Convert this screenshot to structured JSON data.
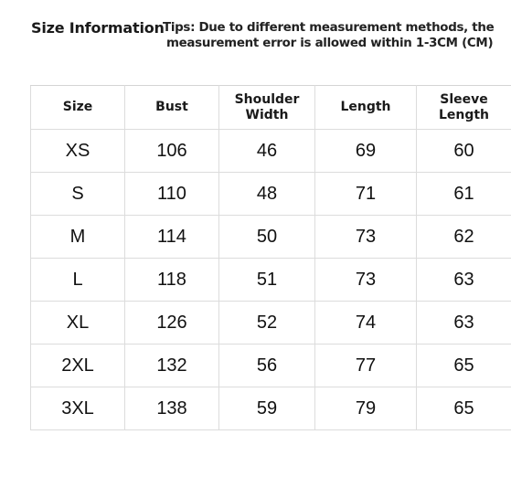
{
  "header": {
    "title": "Size Information",
    "tips_line1": "Tips: Due to different measurement methods, the",
    "tips_line2": "measurement error is allowed within 1-3CM (CM)"
  },
  "table": {
    "columns": [
      "Size",
      "Bust",
      "Shoulder\nWidth",
      "Length",
      "Sleeve\nLength"
    ],
    "rows": [
      [
        "XS",
        "106",
        "46",
        "69",
        "60"
      ],
      [
        "S",
        "110",
        "48",
        "71",
        "61"
      ],
      [
        "M",
        "114",
        "50",
        "73",
        "62"
      ],
      [
        "L",
        "118",
        "51",
        "73",
        "63"
      ],
      [
        "XL",
        "126",
        "52",
        "74",
        "63"
      ],
      [
        "2XL",
        "132",
        "56",
        "77",
        "65"
      ],
      [
        "3XL",
        "138",
        "59",
        "79",
        "65"
      ]
    ]
  },
  "chart_data": {
    "type": "table",
    "columns": [
      "Size",
      "Bust",
      "Shoulder Width",
      "Length",
      "Sleeve Length"
    ],
    "rows": [
      [
        "XS",
        106,
        46,
        69,
        60
      ],
      [
        "S",
        110,
        48,
        71,
        61
      ],
      [
        "M",
        114,
        50,
        73,
        62
      ],
      [
        "L",
        118,
        51,
        73,
        63
      ],
      [
        "XL",
        126,
        52,
        74,
        63
      ],
      [
        "2XL",
        132,
        56,
        77,
        65
      ],
      [
        "3XL",
        138,
        59,
        79,
        65
      ]
    ]
  }
}
